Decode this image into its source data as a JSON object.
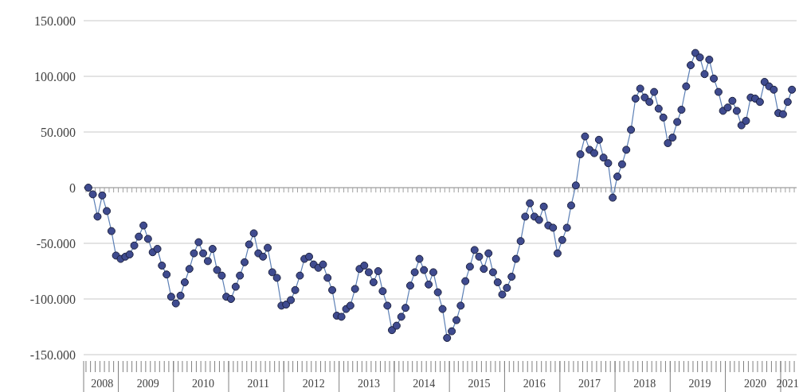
{
  "chart_data": {
    "type": "line",
    "x": [
      "2008-06",
      "2008-07",
      "2008-08",
      "2008-09",
      "2008-10",
      "2008-11",
      "2008-12",
      "2009-01",
      "2009-02",
      "2009-03",
      "2009-04",
      "2009-05",
      "2009-06",
      "2009-07",
      "2009-08",
      "2009-09",
      "2009-10",
      "2009-11",
      "2009-12",
      "2010-01",
      "2010-02",
      "2010-03",
      "2010-04",
      "2010-05",
      "2010-06",
      "2010-07",
      "2010-08",
      "2010-09",
      "2010-10",
      "2010-11",
      "2010-12",
      "2011-01",
      "2011-02",
      "2011-03",
      "2011-04",
      "2011-05",
      "2011-06",
      "2011-07",
      "2011-08",
      "2011-09",
      "2011-10",
      "2011-11",
      "2011-12",
      "2012-01",
      "2012-02",
      "2012-03",
      "2012-04",
      "2012-05",
      "2012-06",
      "2012-07",
      "2012-08",
      "2012-09",
      "2012-10",
      "2012-11",
      "2012-12",
      "2013-01",
      "2013-02",
      "2013-03",
      "2013-04",
      "2013-05",
      "2013-06",
      "2013-07",
      "2013-08",
      "2013-09",
      "2013-10",
      "2013-11",
      "2013-12",
      "2014-01",
      "2014-02",
      "2014-03",
      "2014-04",
      "2014-05",
      "2014-06",
      "2014-07",
      "2014-08",
      "2014-09",
      "2014-10",
      "2014-11",
      "2014-12",
      "2015-01",
      "2015-02",
      "2015-03",
      "2015-04",
      "2015-05",
      "2015-06",
      "2015-07",
      "2015-08",
      "2015-09",
      "2015-10",
      "2015-11",
      "2015-12",
      "2016-01",
      "2016-02",
      "2016-03",
      "2016-04",
      "2016-05",
      "2016-06",
      "2016-07",
      "2016-08",
      "2016-09",
      "2016-10",
      "2016-11",
      "2016-12",
      "2017-01",
      "2017-02",
      "2017-03",
      "2017-04",
      "2017-05",
      "2017-06",
      "2017-07",
      "2017-08",
      "2017-09",
      "2017-10",
      "2017-11",
      "2017-12",
      "2018-01",
      "2018-02",
      "2018-03",
      "2018-04",
      "2018-05",
      "2018-06",
      "2018-07",
      "2018-08",
      "2018-09",
      "2018-10",
      "2018-11",
      "2018-12",
      "2019-01",
      "2019-02",
      "2019-03",
      "2019-04",
      "2019-05",
      "2019-06",
      "2019-07",
      "2019-08",
      "2019-09",
      "2019-10",
      "2019-11",
      "2019-12",
      "2020-01",
      "2020-02",
      "2020-03",
      "2020-04",
      "2020-05",
      "2020-06",
      "2020-07",
      "2020-08",
      "2020-09",
      "2020-10",
      "2020-11",
      "2020-12",
      "2021-01",
      "2021-02",
      "2021-03"
    ],
    "series": [
      {
        "color": "#3f4b8f",
        "values": [
          0,
          -6000,
          -26000,
          -7000,
          -21000,
          -39000,
          -61000,
          -64000,
          -62000,
          -60000,
          -52000,
          -44000,
          -34000,
          -46000,
          -58000,
          -55000,
          -70000,
          -78000,
          -98000,
          -104000,
          -97000,
          -85000,
          -73000,
          -59000,
          -49000,
          -59000,
          -66000,
          -55000,
          -74000,
          -79000,
          -98000,
          -100000,
          -89000,
          -79000,
          -67000,
          -51000,
          -41000,
          -59000,
          -62000,
          -54000,
          -76000,
          -81000,
          -106000,
          -105000,
          -101000,
          -92000,
          -79000,
          -64000,
          -62000,
          -69000,
          -72000,
          -69000,
          -81000,
          -92000,
          -115000,
          -116000,
          -109000,
          -106000,
          -91000,
          -73000,
          -70000,
          -76000,
          -85000,
          -75000,
          -93000,
          -106000,
          -128000,
          -124000,
          -116000,
          -108000,
          -88000,
          -76000,
          -64000,
          -74000,
          -87000,
          -76000,
          -94000,
          -109000,
          -135000,
          -129000,
          -119000,
          -106000,
          -84000,
          -71000,
          -56000,
          -62000,
          -73000,
          -59000,
          -76000,
          -85000,
          -96000,
          -90000,
          -80000,
          -64000,
          -48000,
          -26000,
          -14000,
          -26000,
          -29000,
          -17000,
          -34000,
          -36000,
          -59000,
          -47000,
          -36000,
          -16000,
          2000,
          30000,
          46000,
          34000,
          31000,
          43000,
          27000,
          22000,
          -9000,
          10000,
          21000,
          34000,
          52000,
          80000,
          89000,
          81000,
          77000,
          86000,
          71000,
          63000,
          40000,
          45000,
          59000,
          70000,
          91000,
          110000,
          121000,
          117000,
          102000,
          115000,
          98000,
          86000,
          69000,
          72000,
          78000,
          69000,
          56000,
          60000,
          81000,
          80000,
          77000,
          95000,
          91000,
          88000,
          67000,
          66000,
          77000,
          88000
        ]
      }
    ],
    "xlim": [
      "2008-05",
      "2021-04"
    ],
    "xticks": [
      {
        "value": "2008-09-01",
        "label": "2008"
      },
      {
        "value": "2009-07-01",
        "label": "2009"
      },
      {
        "value": "2010-07-01",
        "label": "2010"
      },
      {
        "value": "2011-07-01",
        "label": "2011"
      },
      {
        "value": "2012-07-01",
        "label": "2012"
      },
      {
        "value": "2013-07-01",
        "label": "2013"
      },
      {
        "value": "2014-07-01",
        "label": "2014"
      },
      {
        "value": "2015-07-01",
        "label": "2015"
      },
      {
        "value": "2016-07-01",
        "label": "2016"
      },
      {
        "value": "2017-07-01",
        "label": "2017"
      },
      {
        "value": "2018-07-01",
        "label": "2018"
      },
      {
        "value": "2019-07-01",
        "label": "2019"
      },
      {
        "value": "2020-07-01",
        "label": "2020"
      },
      {
        "value": "2021-02-01",
        "label": "2021"
      }
    ],
    "ylim": [
      -150000,
      150000
    ],
    "yticks": [
      {
        "value": -150000,
        "label": "-150.000"
      },
      {
        "value": -100000,
        "label": "-100.000"
      },
      {
        "value": -50000,
        "label": "-50.000"
      },
      {
        "value": 0,
        "label": "0"
      },
      {
        "value": 50000,
        "label": "50.000"
      },
      {
        "value": 100000,
        "label": "100.000"
      },
      {
        "value": 150000,
        "label": "150.000"
      }
    ],
    "grid": "y",
    "marker": "circle",
    "line_style": "solid"
  }
}
